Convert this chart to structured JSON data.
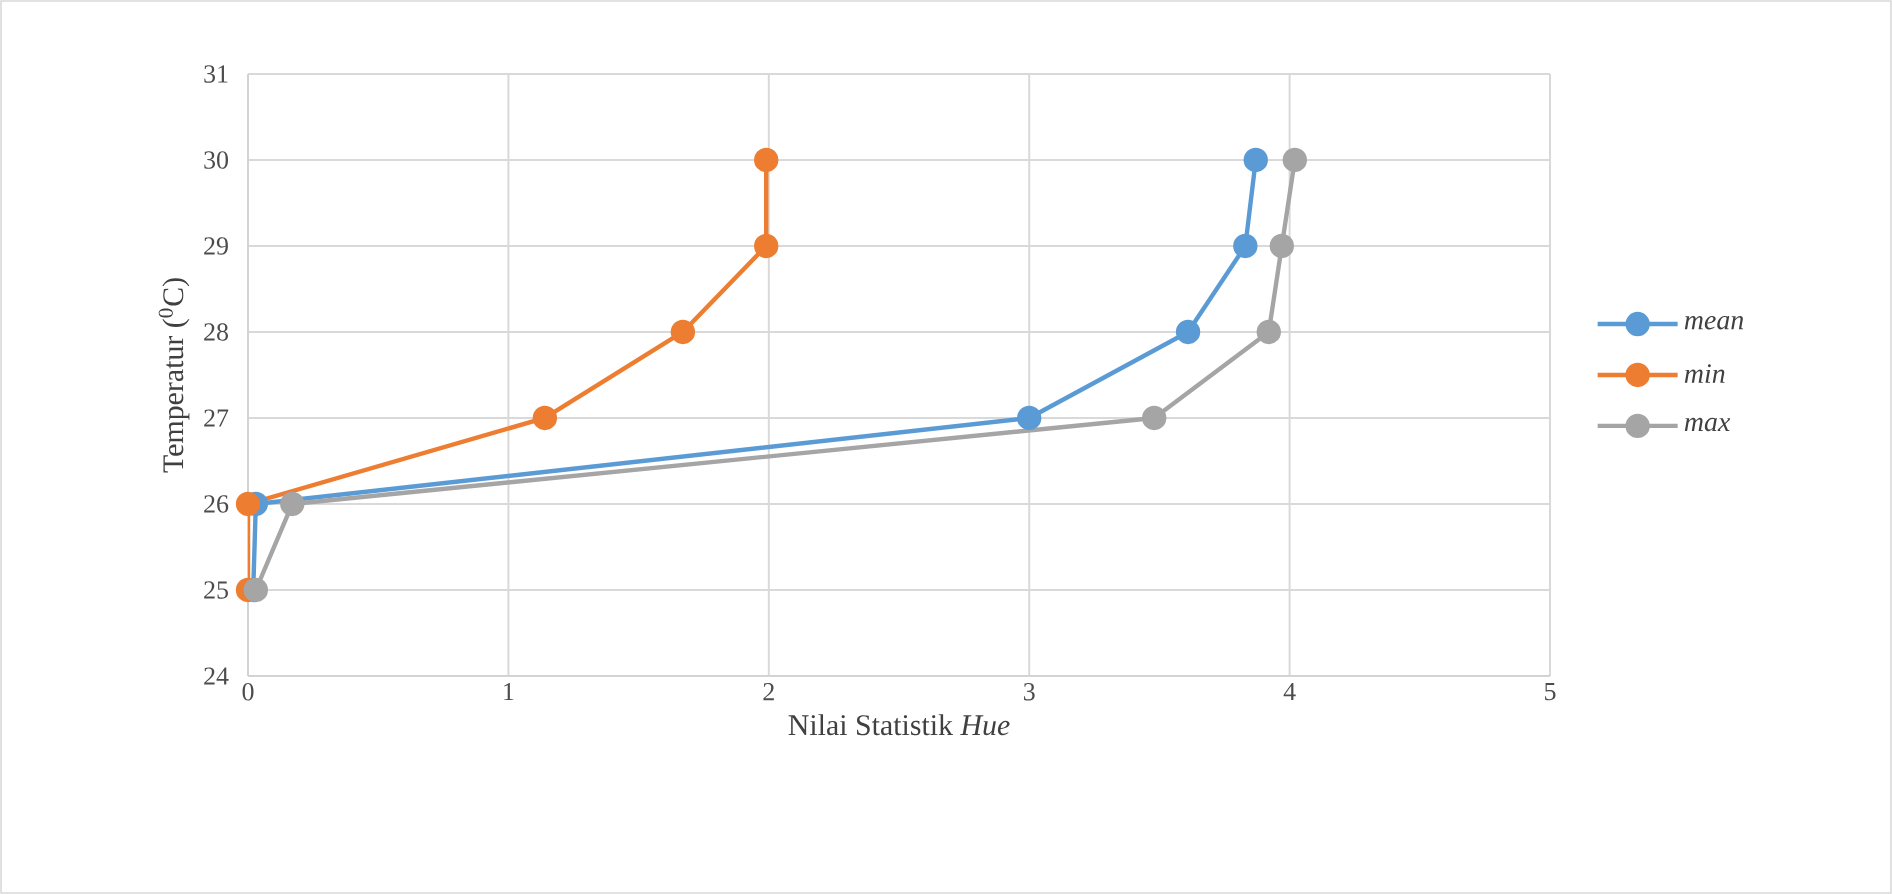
{
  "chart_data": {
    "type": "line",
    "xlabel": "Nilai Statistik *Hue*",
    "ylabel": "Temperatur ($^{0}$C)",
    "xlim": [
      0,
      5
    ],
    "ylim": [
      24,
      31
    ],
    "xticks": [
      0,
      1,
      2,
      3,
      4,
      5
    ],
    "yticks": [
      24,
      25,
      26,
      27,
      28,
      29,
      30,
      31
    ],
    "grid": true,
    "legend": "right",
    "marker": "circle",
    "line_style": "solid",
    "series": [
      {
        "name": "mean",
        "color": "#5b9bd5",
        "x": [
          0.02,
          0.03,
          3.0,
          3.61,
          3.83,
          3.87
        ],
        "values": [
          25,
          26,
          27,
          28,
          29,
          30
        ]
      },
      {
        "name": "min",
        "color": "#ed7d31",
        "x": [
          0,
          0,
          1.14,
          1.67,
          1.99,
          1.99
        ],
        "values": [
          25,
          26,
          27,
          28,
          29,
          30
        ]
      },
      {
        "name": "max",
        "color": "#a5a5a5",
        "x": [
          0.03,
          0.17,
          3.48,
          3.92,
          3.97,
          4.02
        ],
        "values": [
          25,
          26,
          27,
          28,
          29,
          30
        ]
      }
    ]
  }
}
